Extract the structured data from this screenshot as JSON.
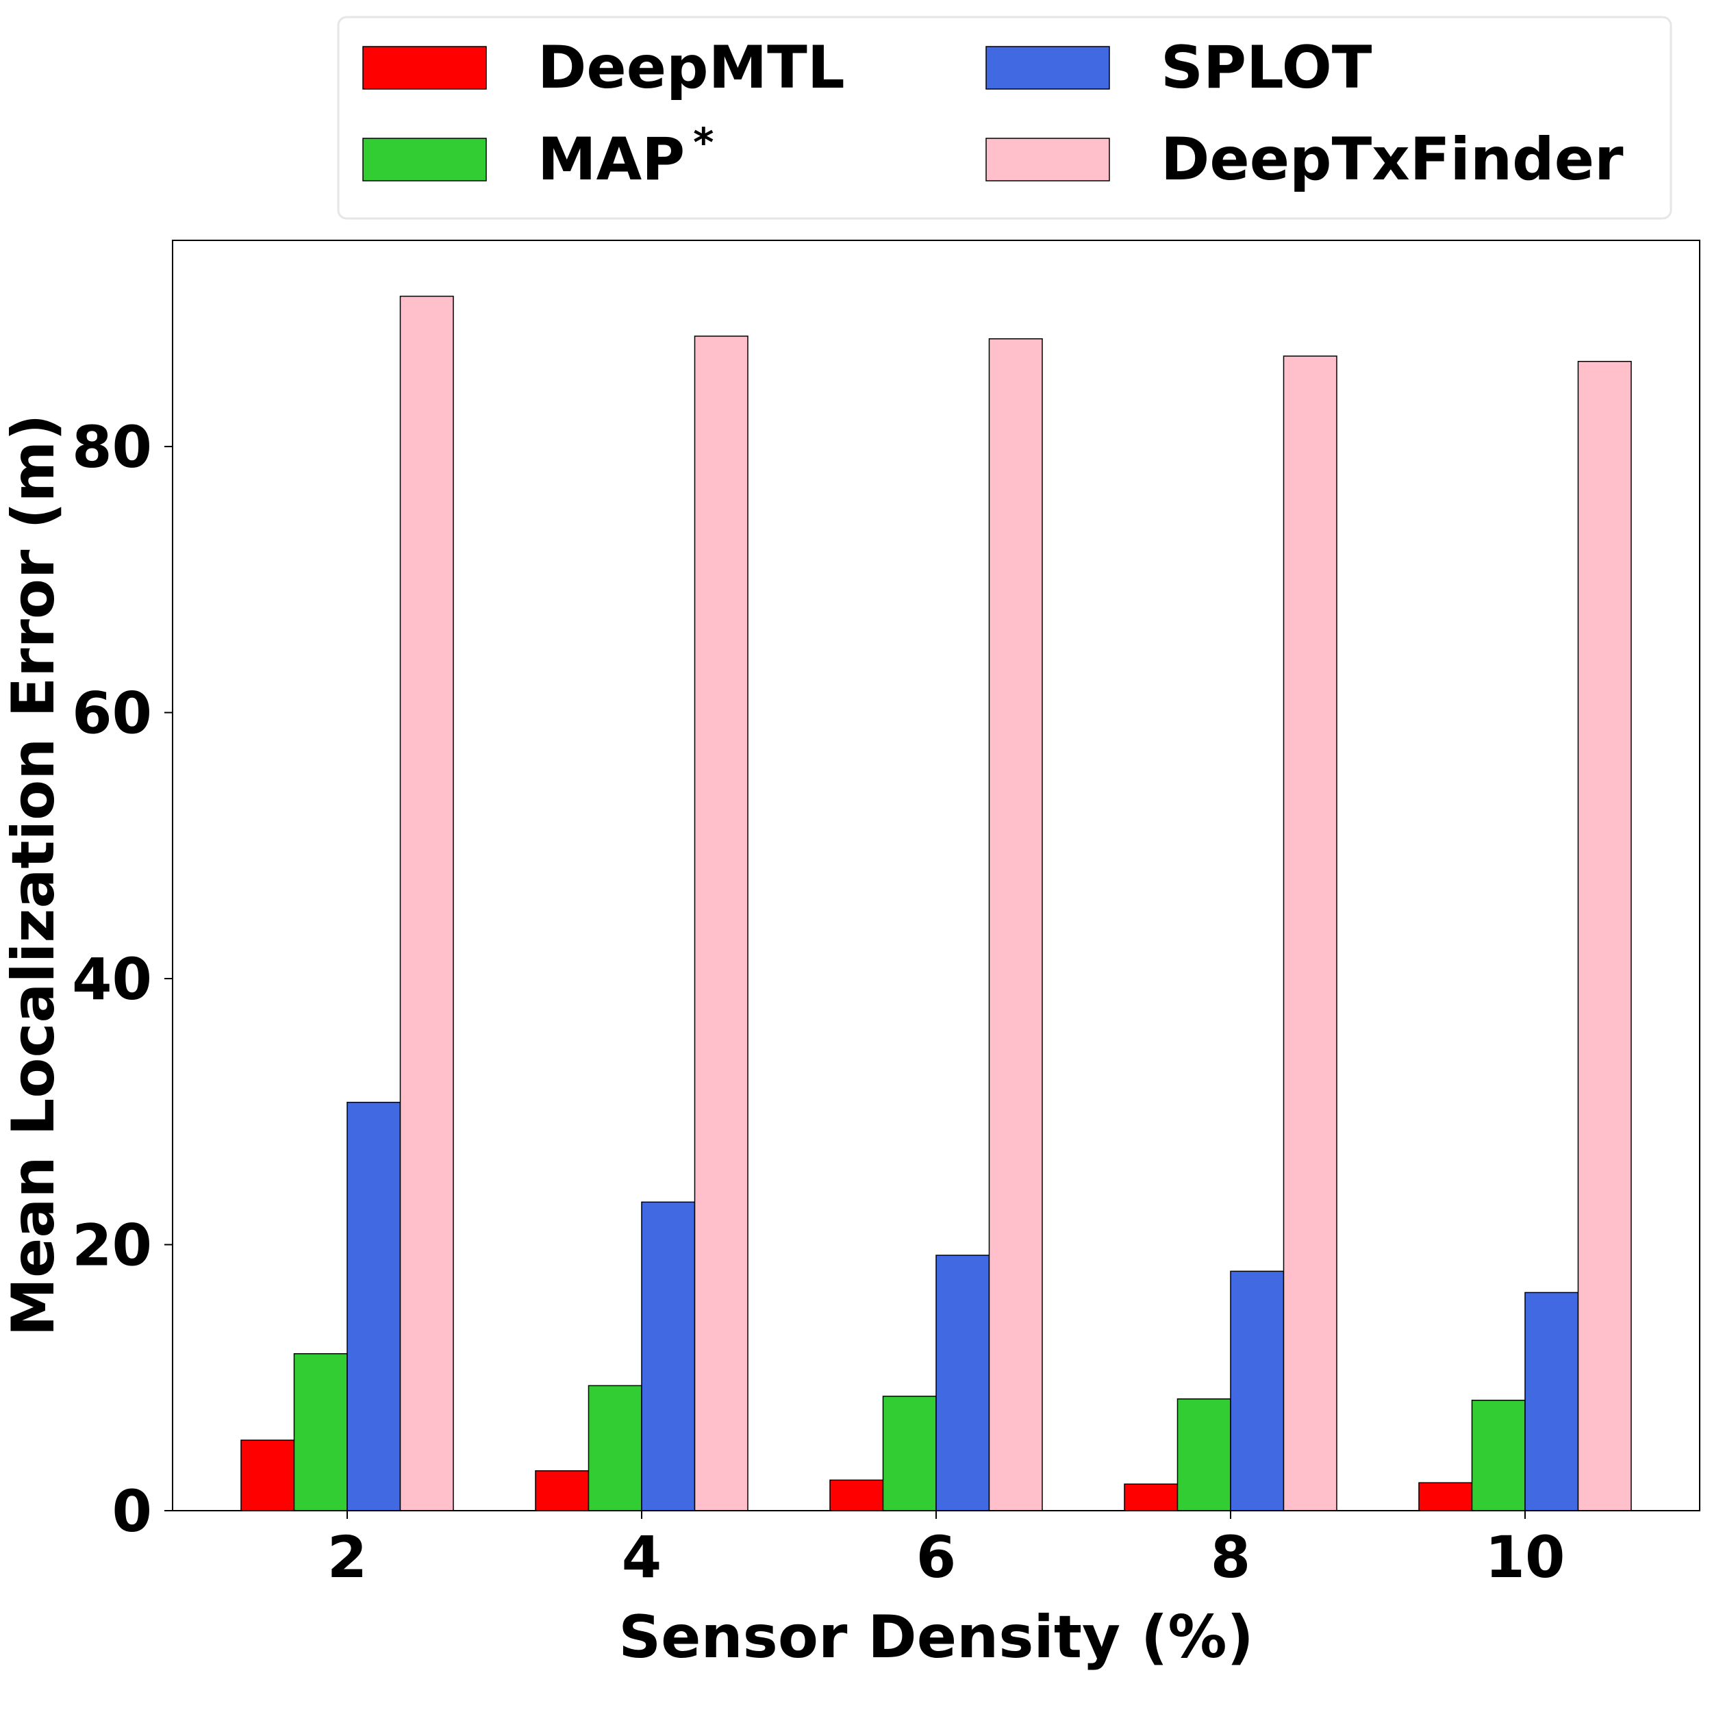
{
  "chart_data": {
    "type": "bar",
    "xlabel": "Sensor Density (%)",
    "ylabel": "Mean Localization Error (m)",
    "categories": [
      "2",
      "4",
      "6",
      "8",
      "10"
    ],
    "ylim": [
      0,
      95.5
    ],
    "yticks": [
      0,
      20,
      40,
      60,
      80
    ],
    "grid": false,
    "legend_placement": "top, above plot, 2 columns",
    "series": [
      {
        "name": "DeepMTL",
        "name_sup": "",
        "color": "#ff0000",
        "values": [
          5.3,
          3.0,
          2.3,
          2.0,
          2.1
        ]
      },
      {
        "name": "MAP",
        "name_sup": "*",
        "color": "#32cd32",
        "values": [
          11.8,
          9.4,
          8.6,
          8.4,
          8.3
        ]
      },
      {
        "name": "SPLOT",
        "name_sup": "",
        "color": "#4169e1",
        "values": [
          30.7,
          23.2,
          19.2,
          18.0,
          16.4
        ]
      },
      {
        "name": "DeepTxFinder",
        "name_sup": "",
        "color": "#ffc0cb",
        "values": [
          91.3,
          88.3,
          88.1,
          86.8,
          86.4
        ]
      }
    ]
  }
}
